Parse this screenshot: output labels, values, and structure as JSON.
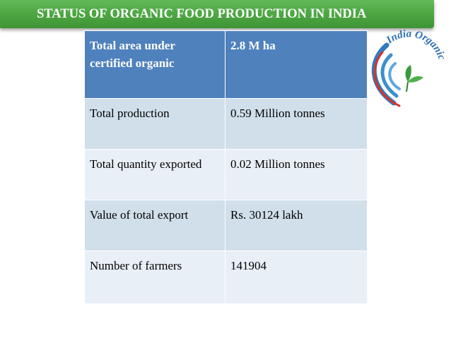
{
  "slide": {
    "title": "STATUS OF ORGANIC FOOD PRODUCTION IN INDIA"
  },
  "logo": {
    "text": "India Organic",
    "colors": {
      "arc_blue": "#2e7bbf",
      "arc_red": "#d9322a",
      "leaf_green": "#3a9a3a",
      "text_blue": "#2b6fb0"
    }
  },
  "table": {
    "rows": [
      {
        "label": "Total area under certified organic",
        "value": "2.8 M ha"
      },
      {
        "label": "Total production",
        "value": "0.59 Million tonnes"
      },
      {
        "label": "Total quantity exported",
        "value": "0.02 Million tonnes"
      },
      {
        "label": "Value of total export",
        "value": "Rs. 30124 lakh"
      },
      {
        "label": "Number of farmers",
        "value": "141904"
      }
    ]
  }
}
